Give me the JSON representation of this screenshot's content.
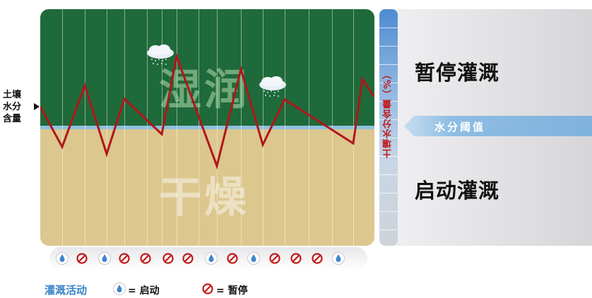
{
  "plot": {
    "wet_label": "湿润",
    "dry_label": "干燥",
    "threshold_color": "#8fc1df",
    "wet_color": "#1f6a3a",
    "dry_color": "#dcc78e",
    "curve_color": "#b0161b"
  },
  "y_annotation": {
    "line1": "土壤",
    "line2": "水分",
    "line3": "含量"
  },
  "right_panel": {
    "axis_title": "土壤水分含量（%）",
    "stop_irrigation": "暂停灌溉",
    "start_irrigation": "启动灌溉",
    "threshold_label": "水分阈值"
  },
  "activity_strip": {
    "icons": [
      "drop-icon",
      "stop-icon",
      "drop-icon",
      "stop-icon",
      "stop-icon",
      "stop-icon",
      "stop-icon",
      "drop-icon",
      "stop-icon",
      "drop-icon",
      "stop-icon",
      "stop-icon",
      "stop-icon",
      "drop-icon"
    ]
  },
  "legend": {
    "title": "灌溉活动",
    "start_text": "= 启动",
    "stop_text": "= 暂停"
  }
}
